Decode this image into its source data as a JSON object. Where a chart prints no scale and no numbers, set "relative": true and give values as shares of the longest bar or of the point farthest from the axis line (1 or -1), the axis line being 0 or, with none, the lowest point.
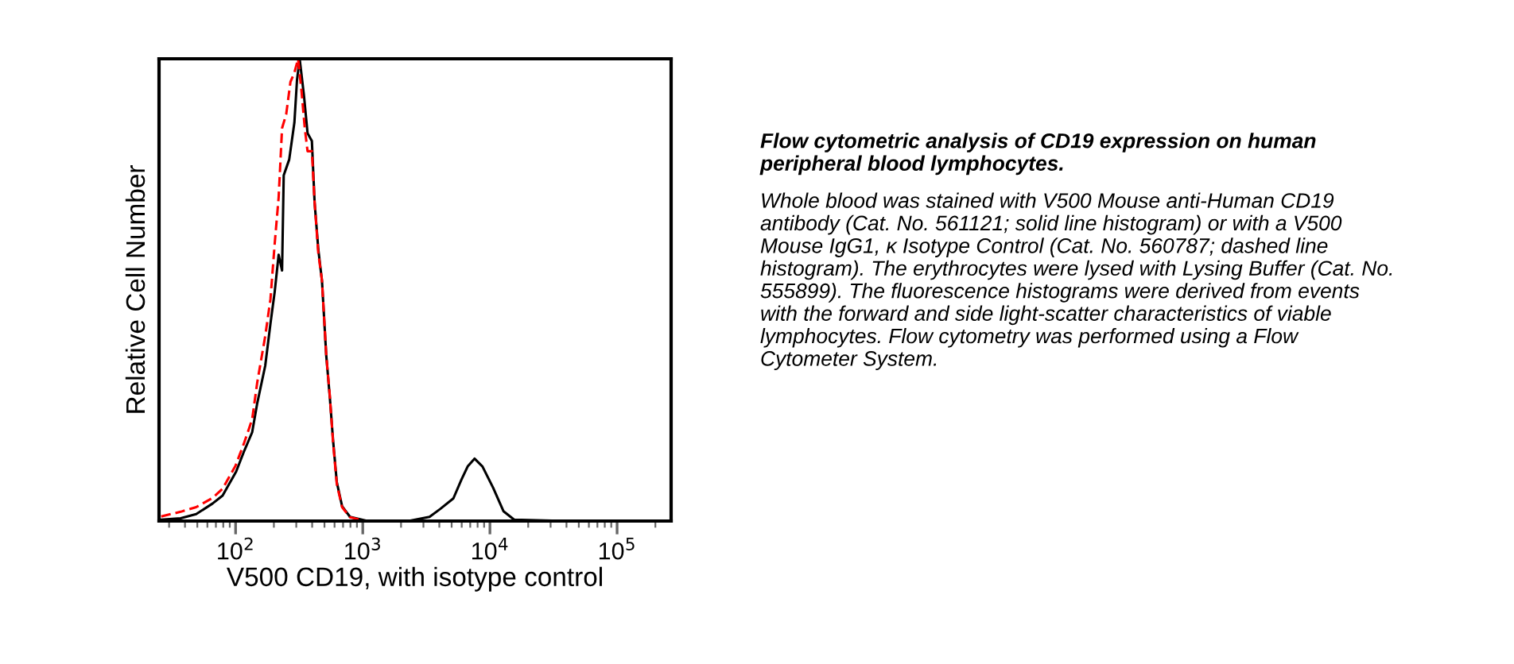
{
  "chart_data": {
    "type": "line",
    "relative": true,
    "log": "x",
    "xlabel": "V500 CD19, with isotype control",
    "ylabel": "Relative Cell Number",
    "xlim": [
      25,
      266000
    ],
    "xticks": [
      {
        "value": 100,
        "label": "10$^{2}$"
      },
      {
        "value": 1000,
        "label": "10$^{3}$"
      },
      {
        "value": 10000,
        "label": "10$^{4}$"
      },
      {
        "value": 100000,
        "label": "10$^{5}$"
      }
    ],
    "tick_labels": "x",
    "grid": false,
    "legend": false,
    "marker": "none",
    "series": [
      {
        "color": "#000000",
        "line_style": "solid",
        "x": [
          26,
          37,
          49,
          66,
          79,
          101,
          117,
          135,
          148,
          171,
          188,
          203,
          218,
          232,
          239,
          264,
          290,
          304,
          319,
          345,
          368,
          398,
          418,
          447,
          478,
          516,
          551,
          584,
          625,
          688,
          794,
          1059,
          2280,
          3350,
          4060,
          5160,
          5960,
          6680,
          7570,
          8740,
          10600,
          12800,
          15500,
          40600,
          251000
        ],
        "values": [
          0.003,
          0.006,
          0.015,
          0.038,
          0.055,
          0.107,
          0.152,
          0.192,
          0.255,
          0.336,
          0.427,
          0.496,
          0.576,
          0.542,
          0.748,
          0.782,
          0.862,
          0.954,
          1.0,
          0.92,
          0.839,
          0.822,
          0.69,
          0.588,
          0.519,
          0.359,
          0.267,
          0.175,
          0.084,
          0.032,
          0.009,
          0.001,
          0.0,
          0.009,
          0.026,
          0.049,
          0.089,
          0.118,
          0.135,
          0.118,
          0.072,
          0.021,
          0.003,
          0.0,
          0.0
        ]
      },
      {
        "color": "#ff0000",
        "line_style": "dashed",
        "x": [
          26,
          37,
          49,
          66,
          79,
          100,
          117,
          135,
          148,
          171,
          188,
          203,
          218,
          232,
          250,
          270,
          290,
          310,
          330,
          350,
          368,
          398,
          418,
          447,
          478,
          516,
          551,
          584,
          625,
          688,
          794,
          1059
        ],
        "values": [
          0.01,
          0.02,
          0.03,
          0.05,
          0.07,
          0.12,
          0.17,
          0.22,
          0.3,
          0.4,
          0.48,
          0.6,
          0.7,
          0.85,
          0.88,
          0.95,
          0.97,
          1.0,
          0.93,
          0.85,
          0.8,
          0.8,
          0.69,
          0.58,
          0.52,
          0.36,
          0.27,
          0.17,
          0.08,
          0.03,
          0.008,
          0.0
        ]
      }
    ],
    "annotations": [
      "Flow cytometric analysis of CD19 expression on human peripheral blood lymphocytes.",
      "Whole blood was stained with V500 Mouse anti-Human CD19 antibody (Cat. No. 561121; solid line histogram) or with a V500 Mouse IgG1, κ Isotype Control (Cat. No. 560787; dashed line histogram). The erythrocytes were lysed with Lysing Buffer (Cat. No. 555899). The fluorescence histograms were derived from events with the forward and side light-scatter characteristics of viable lymphocytes. Flow cytometry was performed using a Flow Cytometer System."
    ]
  }
}
